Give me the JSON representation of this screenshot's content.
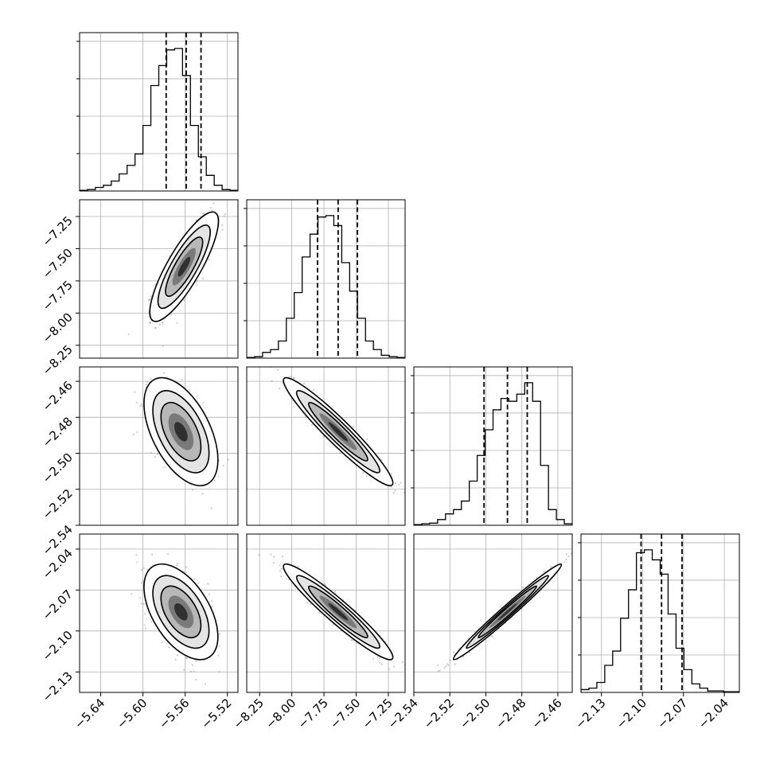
{
  "chart_data": {
    "type": "corner",
    "parameters": [
      {
        "range": [
          -5.66,
          -5.51
        ],
        "ticks": [
          -5.64,
          -5.6,
          -5.56,
          -5.52
        ],
        "tick_labels": [
          "−5.64",
          "−5.60",
          "−5.56",
          "−5.52"
        ],
        "quantiles": [
          -5.578,
          -5.559,
          -5.545
        ],
        "hist": [
          0.005,
          0.01,
          0.025,
          0.04,
          0.07,
          0.12,
          0.18,
          0.26,
          0.46,
          0.74,
          0.88,
          0.99,
          1.0,
          0.81,
          0.46,
          0.24,
          0.11,
          0.04,
          0.01,
          0.005
        ]
      },
      {
        "range": [
          -8.35,
          -7.12
        ],
        "ticks": [
          -8.25,
          -8.0,
          -7.75,
          -7.5,
          -7.25
        ],
        "tick_labels": [
          "−8.25",
          "−8.00",
          "−7.75",
          "−7.50",
          "−7.25"
        ],
        "quantiles": [
          -7.8,
          -7.64,
          -7.49
        ],
        "hist": [
          0.005,
          0.01,
          0.04,
          0.06,
          0.12,
          0.28,
          0.46,
          0.71,
          0.87,
          0.99,
          1.0,
          0.93,
          0.67,
          0.47,
          0.28,
          0.12,
          0.06,
          0.02,
          0.01,
          0.005
        ]
      },
      {
        "range": [
          -2.54,
          -2.452
        ],
        "ticks": [
          -2.54,
          -2.52,
          -2.5,
          -2.48,
          -2.46
        ],
        "tick_labels": [
          "−2.54",
          "−2.52",
          "−2.50",
          "−2.48",
          "−2.46"
        ],
        "y_ticks": [
          -2.54,
          -2.52,
          -2.5,
          -2.48,
          -2.46
        ],
        "y_tick_labels": [
          "−2.54",
          "−2.52",
          "−2.50",
          "−2.48",
          "−2.46"
        ],
        "quantiles": [
          -2.501,
          -2.488,
          -2.477
        ],
        "hist": [
          0.005,
          0.01,
          0.015,
          0.04,
          0.08,
          0.11,
          0.17,
          0.31,
          0.49,
          0.67,
          0.81,
          0.89,
          0.87,
          0.92,
          1.0,
          0.87,
          0.42,
          0.11,
          0.04,
          0.01
        ]
      },
      {
        "range": [
          -2.145,
          -2.029
        ],
        "ticks": [
          -2.13,
          -2.1,
          -2.07,
          -2.04
        ],
        "tick_labels": [
          "−2.13",
          "−2.10",
          "−2.07",
          "−2.04"
        ],
        "quantiles": [
          -2.101,
          -2.086,
          -2.071
        ],
        "hist": [
          0.02,
          0.03,
          0.07,
          0.19,
          0.29,
          0.52,
          0.72,
          0.98,
          1.0,
          0.93,
          0.83,
          0.55,
          0.31,
          0.16,
          0.06,
          0.03,
          0.01,
          0.01,
          0.005,
          0.005
        ]
      }
    ],
    "pairs": [
      {
        "row": 1,
        "col": 0,
        "center": [
          -5.561,
          -7.64
        ],
        "sd": [
          0.013,
          0.17
        ],
        "rho": 0.83
      },
      {
        "row": 2,
        "col": 0,
        "center": [
          -5.564,
          -2.488
        ],
        "sd": [
          0.014,
          0.012
        ],
        "rho": -0.52
      },
      {
        "row": 2,
        "col": 1,
        "center": [
          -7.64,
          -2.488
        ],
        "sd": [
          0.17,
          0.012
        ],
        "rho": -0.95
      },
      {
        "row": 3,
        "col": 0,
        "center": [
          -5.564,
          -2.086
        ],
        "sd": [
          0.014,
          0.014
        ],
        "rho": -0.52
      },
      {
        "row": 3,
        "col": 1,
        "center": [
          -7.64,
          -2.086
        ],
        "sd": [
          0.17,
          0.014
        ],
        "rho": -0.95
      },
      {
        "row": 3,
        "col": 2,
        "center": [
          -2.488,
          -2.086
        ],
        "sd": [
          0.012,
          0.014
        ],
        "rho": 0.985
      }
    ],
    "grid": true,
    "hist_y_ticks": 4
  }
}
